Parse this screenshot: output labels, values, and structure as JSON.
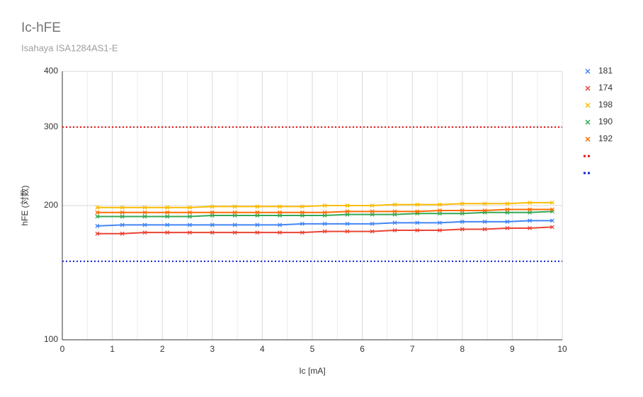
{
  "chart_data": {
    "type": "line",
    "title": "Ic-hFE",
    "subtitle": "Isahaya ISA1284AS1-E",
    "x_label": "Ic [mA]",
    "y_label": "hFE (対数)",
    "y_log": true,
    "grid": true,
    "x_minor_grid": true,
    "legend": "right",
    "xlim": [
      0,
      10
    ],
    "xticks": [
      0,
      1,
      2,
      3,
      4,
      5,
      6,
      7,
      8,
      9,
      10
    ],
    "ylim": [
      100,
      400
    ],
    "yticks": [
      100,
      200,
      300,
      400
    ],
    "x": [
      0.7,
      1.2,
      1.65,
      2.1,
      2.55,
      3.0,
      3.45,
      3.9,
      4.35,
      4.8,
      5.25,
      5.7,
      6.2,
      6.65,
      7.1,
      7.55,
      8.0,
      8.45,
      8.9,
      9.35,
      9.8
    ],
    "series": [
      {
        "name": "181",
        "color": "#4285f4",
        "values": [
          180,
          181,
          181,
          181,
          181,
          181,
          181,
          181,
          181,
          182,
          182,
          182,
          182,
          183,
          183,
          183,
          184,
          184,
          184,
          185,
          185
        ]
      },
      {
        "name": "174",
        "color": "#ea4335",
        "values": [
          173,
          173,
          174,
          174,
          174,
          174,
          174,
          174,
          174,
          174,
          175,
          175,
          175,
          176,
          176,
          176,
          177,
          177,
          178,
          178,
          179
        ]
      },
      {
        "name": "198",
        "color": "#fbbc04",
        "values": [
          198,
          198,
          198,
          198,
          198,
          199,
          199,
          199,
          199,
          199,
          200,
          200,
          200,
          201,
          201,
          201,
          202,
          202,
          202,
          203,
          203
        ]
      },
      {
        "name": "190",
        "color": "#34a853",
        "values": [
          189,
          189,
          189,
          189,
          189,
          190,
          190,
          190,
          190,
          190,
          190,
          191,
          191,
          191,
          192,
          192,
          192,
          193,
          193,
          193,
          194
        ]
      },
      {
        "name": "192",
        "color": "#ff6d01",
        "values": [
          193,
          193,
          193,
          193,
          193,
          193,
          193,
          193,
          193,
          193,
          193,
          194,
          194,
          194,
          194,
          195,
          195,
          195,
          196,
          196,
          196
        ]
      }
    ],
    "reference_lines": [
      {
        "value": 300,
        "color": "#e8110f"
      },
      {
        "value": 150,
        "color": "#1020d0"
      }
    ]
  }
}
